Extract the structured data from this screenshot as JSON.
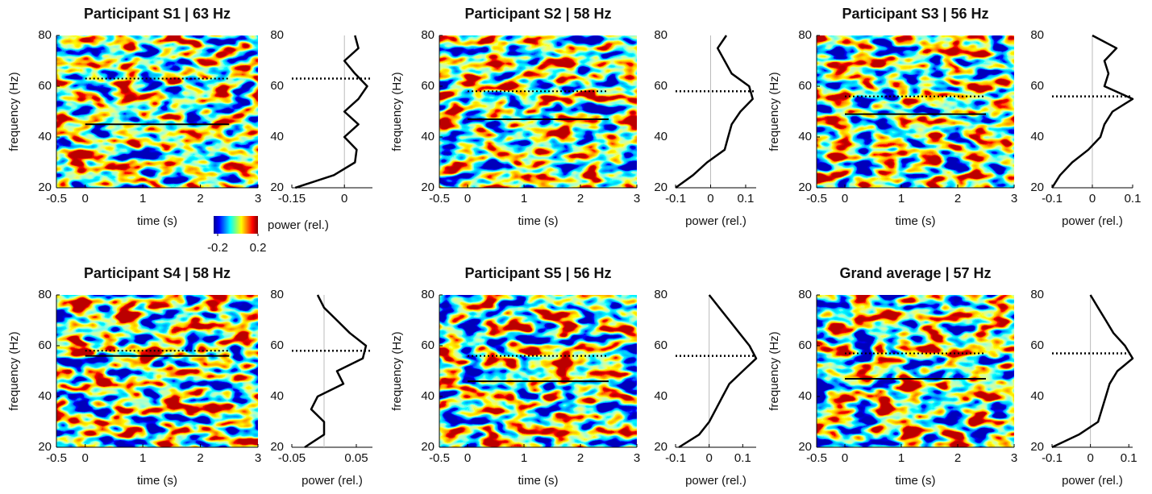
{
  "chart_data": [
    {
      "type": "heatmap",
      "title": "Participant S1 | 63 Hz",
      "xlabel": "time (s)",
      "ylabel": "frequency (Hz)",
      "xlim": [
        -0.5,
        3
      ],
      "xticks": [
        -0.5,
        0,
        1,
        2,
        3
      ],
      "ylim": [
        20,
        80
      ],
      "yticks": [
        20,
        40,
        60,
        80
      ],
      "window": [
        0,
        2.5
      ],
      "peak_frequency": 63,
      "band_frequency": 45,
      "profile": {
        "xlim": [
          -0.15,
          0.08
        ],
        "xticks": [
          -0.15,
          0
        ],
        "frequencies": [
          20,
          25,
          30,
          35,
          40,
          45,
          50,
          55,
          60,
          65,
          70,
          75,
          80
        ],
        "power": [
          -0.14,
          -0.03,
          0.03,
          0.035,
          0.0,
          0.04,
          0.0,
          0.04,
          0.065,
          0.03,
          0.0,
          0.04,
          0.03
        ]
      }
    },
    {
      "type": "heatmap",
      "title": "Participant S2 | 58 Hz",
      "xlabel": "time (s)",
      "ylabel": "frequency (Hz)",
      "xlim": [
        -0.5,
        3
      ],
      "xticks": [
        -0.5,
        0,
        1,
        2,
        3
      ],
      "ylim": [
        20,
        80
      ],
      "yticks": [
        20,
        40,
        60,
        80
      ],
      "window": [
        0,
        2.5
      ],
      "peak_frequency": 58,
      "band_frequency": 47,
      "profile": {
        "xlabel": "power (rel.)",
        "xlim": [
          -0.1,
          0.13
        ],
        "xticks": [
          -0.1,
          0,
          0.1
        ],
        "frequencies": [
          20,
          25,
          30,
          35,
          40,
          45,
          50,
          55,
          60,
          65,
          70,
          75,
          80
        ],
        "power": [
          -0.1,
          -0.05,
          -0.01,
          0.04,
          0.05,
          0.06,
          0.085,
          0.12,
          0.11,
          0.06,
          0.04,
          0.02,
          0.045
        ]
      }
    },
    {
      "type": "heatmap",
      "title": "Participant S3 | 56 Hz",
      "xlabel": "time (s)",
      "ylabel": "frequency (Hz)",
      "xlim": [
        -0.5,
        3
      ],
      "xticks": [
        -0.5,
        0,
        1,
        2,
        3
      ],
      "ylim": [
        20,
        80
      ],
      "yticks": [
        20,
        40,
        60,
        80
      ],
      "window": [
        0,
        2.5
      ],
      "peak_frequency": 56,
      "band_frequency": 49,
      "profile": {
        "xlabel": "power (rel.)",
        "xlim": [
          -0.1,
          0.1
        ],
        "xticks": [
          -0.1,
          0,
          0.1
        ],
        "frequencies": [
          20,
          25,
          30,
          35,
          40,
          45,
          50,
          55,
          60,
          65,
          70,
          75,
          80
        ],
        "power": [
          -0.1,
          -0.08,
          -0.05,
          -0.01,
          0.02,
          0.03,
          0.05,
          0.1,
          0.03,
          0.04,
          0.03,
          0.06,
          0.0
        ]
      }
    },
    {
      "type": "heatmap",
      "title": "Participant S4 | 58 Hz",
      "xlabel": "time (s)",
      "ylabel": "frequency (Hz)",
      "xlim": [
        -0.5,
        3
      ],
      "xticks": [
        -0.5,
        0,
        1,
        2,
        3
      ],
      "ylim": [
        20,
        80
      ],
      "yticks": [
        20,
        40,
        60,
        80
      ],
      "window": [
        0,
        2.5
      ],
      "peak_frequency": 58,
      "band_frequency": 56,
      "profile": {
        "xlabel": "power (rel.)",
        "xlim": [
          -0.05,
          0.075
        ],
        "xticks": [
          -0.05,
          0.05
        ],
        "frequencies": [
          20,
          25,
          30,
          35,
          40,
          45,
          50,
          55,
          60,
          65,
          70,
          75,
          80
        ],
        "power": [
          -0.03,
          0.0,
          0.0,
          -0.02,
          -0.01,
          0.03,
          0.02,
          0.06,
          0.065,
          0.04,
          0.02,
          0.0,
          -0.01
        ]
      }
    },
    {
      "type": "heatmap",
      "title": "Participant S5 | 56 Hz",
      "xlabel": "time (s)",
      "ylabel": "frequency (Hz)",
      "xlim": [
        -0.5,
        3
      ],
      "xticks": [
        -0.5,
        0,
        1,
        2,
        3
      ],
      "ylim": [
        20,
        80
      ],
      "yticks": [
        20,
        40,
        60,
        80
      ],
      "window": [
        0,
        2.5
      ],
      "peak_frequency": 56,
      "band_frequency": 46,
      "profile": {
        "xlabel": "power (rel.)",
        "xlim": [
          -0.1,
          0.14
        ],
        "xticks": [
          -0.1,
          0,
          0.1
        ],
        "frequencies": [
          20,
          25,
          30,
          35,
          40,
          45,
          50,
          55,
          60,
          65,
          70,
          75,
          80
        ],
        "power": [
          -0.09,
          -0.03,
          0.0,
          0.02,
          0.04,
          0.06,
          0.1,
          0.14,
          0.12,
          0.09,
          0.06,
          0.03,
          0.0
        ]
      }
    },
    {
      "type": "heatmap",
      "title": "Grand average | 57 Hz",
      "xlabel": "time (s)",
      "ylabel": "frequency (Hz)",
      "xlim": [
        -0.5,
        3
      ],
      "xticks": [
        -0.5,
        0,
        1,
        2,
        3
      ],
      "ylim": [
        20,
        80
      ],
      "yticks": [
        20,
        40,
        60,
        80
      ],
      "window": [
        0,
        2.5
      ],
      "peak_frequency": 57,
      "band_frequency": 47,
      "profile": {
        "xlabel": "power (rel.)",
        "xlim": [
          -0.1,
          0.11
        ],
        "xticks": [
          -0.1,
          0,
          0.1
        ],
        "frequencies": [
          20,
          25,
          30,
          35,
          40,
          45,
          50,
          55,
          60,
          65,
          70,
          75,
          80
        ],
        "power": [
          -0.1,
          -0.03,
          0.02,
          0.03,
          0.04,
          0.05,
          0.07,
          0.11,
          0.09,
          0.06,
          0.04,
          0.02,
          0.0
        ]
      }
    }
  ],
  "colorbar": {
    "label": "power (rel.)",
    "lim": [
      -0.2,
      0.2
    ],
    "ticks": [
      -0.2,
      0.2
    ]
  }
}
